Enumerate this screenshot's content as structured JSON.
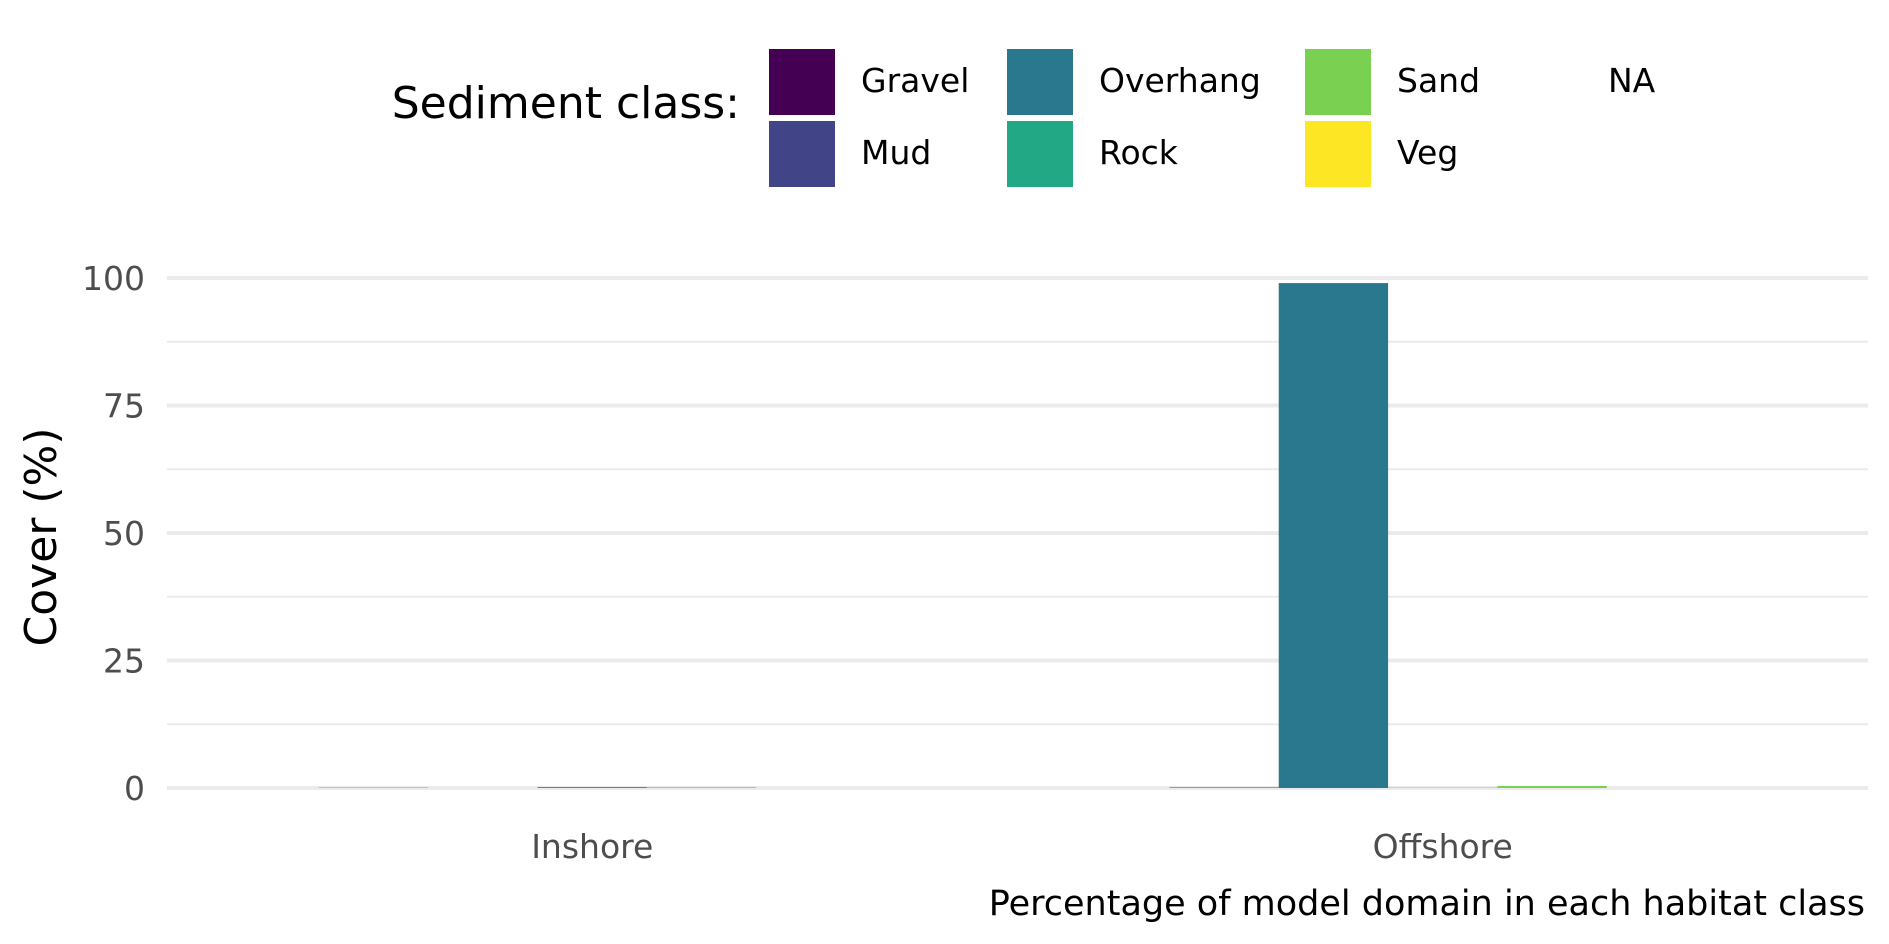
{
  "legend": {
    "title": "Sediment class:",
    "items": [
      {
        "label": "Gravel",
        "color": "#440154"
      },
      {
        "label": "Mud",
        "color": "#414487"
      },
      {
        "label": "Overhang",
        "color": "#2A788E"
      },
      {
        "label": "Rock",
        "color": "#22A884"
      },
      {
        "label": "Sand",
        "color": "#7AD151"
      },
      {
        "label": "Veg",
        "color": "#FDE725"
      },
      {
        "label": "NA",
        "color": ""
      }
    ]
  },
  "chart_data": {
    "type": "bar",
    "ylabel": "Cover (%)",
    "xlabel": "",
    "caption": "Percentage of model domain in each habitat class",
    "ylim": [
      0,
      100
    ],
    "yticks": [
      "0",
      "25",
      "50",
      "75",
      "100"
    ],
    "categories": [
      "Inshore",
      "Offshore"
    ],
    "series": [
      {
        "name": "Gravel",
        "color": "#440154",
        "values": [
          0,
          0
        ]
      },
      {
        "name": "Mud",
        "color": "#414487",
        "values": [
          0.05,
          0.1
        ]
      },
      {
        "name": "Overhang",
        "color": "#2A788E",
        "values": [
          0,
          99
        ]
      },
      {
        "name": "Rock",
        "color": "#22A884",
        "values": [
          0.2,
          0.05
        ]
      },
      {
        "name": "Sand",
        "color": "#7AD151",
        "values": [
          0.15,
          0.4
        ]
      },
      {
        "name": "Veg",
        "color": "#FDE725",
        "values": [
          0,
          0
        ]
      },
      {
        "name": "NA",
        "color": "#999999",
        "values": [
          0,
          0
        ]
      }
    ],
    "legend_position": "top"
  }
}
